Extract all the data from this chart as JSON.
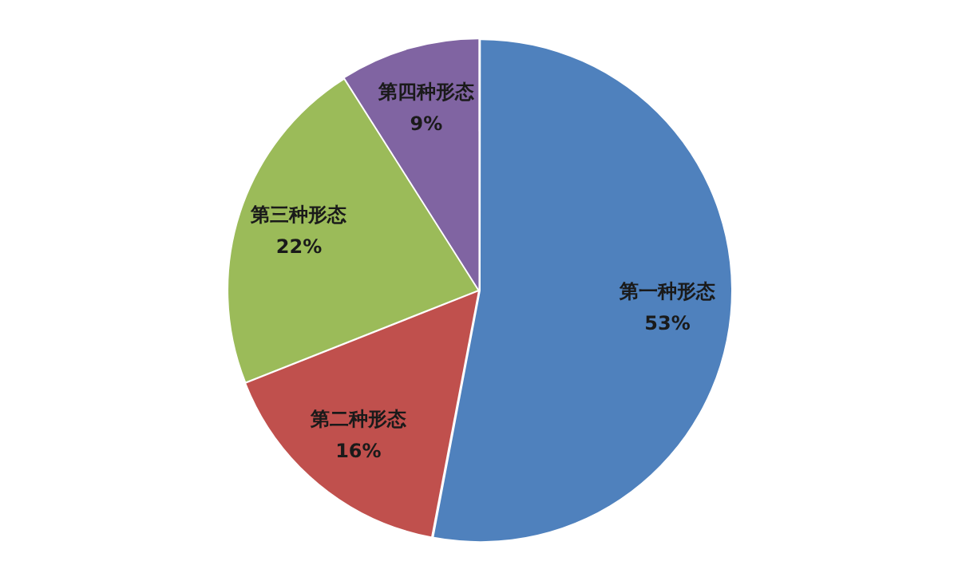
{
  "chart_data": {
    "type": "pie",
    "categories": [
      "第一种形态",
      "第二种形态",
      "第三种形态",
      "第四种形态"
    ],
    "values": [
      53,
      16,
      22,
      9
    ],
    "colors": [
      "#4f81bd",
      "#c0504d",
      "#9bbb59",
      "#8064a2"
    ],
    "value_labels": [
      "53%",
      "16%",
      "22%",
      "9%"
    ],
    "legend": false
  }
}
